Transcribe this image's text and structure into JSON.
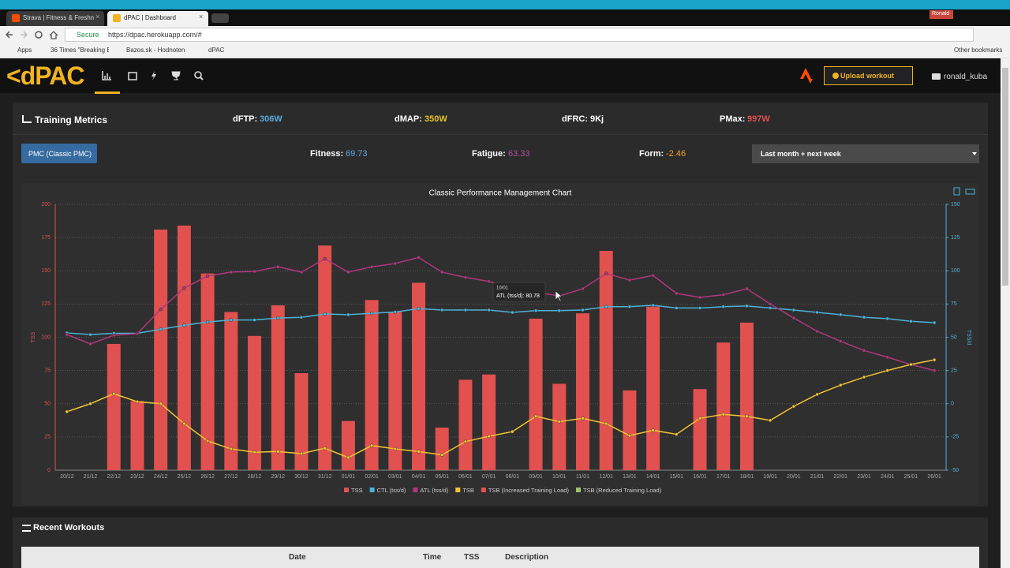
{
  "browser": {
    "tabs": [
      "Strava | Fitness & Freshn",
      "dPAC | Dashboard"
    ],
    "user": "Ronald",
    "secure": "Secure",
    "url": "https://dpac.herokuapp.com/#",
    "bookmarks": [
      "Apps",
      "36 Times \"Breaking B",
      "Bazos.sk - Hodnoten",
      "dPAC"
    ],
    "other_bookmarks": "Other bookmarks"
  },
  "nav": {
    "logo": "<dPAC",
    "upload": "Upload workout",
    "user": "ronald_kuba"
  },
  "metrics": {
    "title": "Training Metrics",
    "items": [
      {
        "label": "dFTP:",
        "value": "306W",
        "color": "#5aa8e0"
      },
      {
        "label": "dMAP:",
        "value": "350W",
        "color": "#e6c229"
      },
      {
        "label": "dFRC:",
        "value": "9Kj",
        "color": "#ffffff"
      },
      {
        "label": "PMax:",
        "value": "997W",
        "color": "#e0514f"
      }
    ]
  },
  "pmc": {
    "selector": "PMC (Classic PMC)",
    "items": [
      {
        "label": "Fitness:",
        "value": "69.73",
        "color": "#5aa8e0"
      },
      {
        "label": "Fatigue:",
        "value": "63.33",
        "color": "#b04f9b"
      },
      {
        "label": "Form:",
        "value": "-2.46",
        "color": "#f0a030"
      }
    ],
    "range": "Last month + next week"
  },
  "chart_data": {
    "type": "bar",
    "title": "Classic Performance Management Chart",
    "y_label": "TSS",
    "y2_label": "TSS/d",
    "categories": [
      "20/12",
      "21/12",
      "22/12",
      "23/12",
      "24/12",
      "25/12",
      "26/12",
      "27/12",
      "28/12",
      "29/12",
      "30/12",
      "31/12",
      "01/01",
      "02/01",
      "03/01",
      "04/01",
      "05/01",
      "06/01",
      "07/01",
      "08/01",
      "09/01",
      "10/01",
      "11/01",
      "12/01",
      "13/01",
      "14/01",
      "15/01",
      "16/01",
      "17/01",
      "18/01",
      "19/01",
      "20/01",
      "21/01",
      "22/01",
      "23/01",
      "24/01",
      "25/01",
      "26/01"
    ],
    "ylim": [
      0,
      200
    ],
    "yticks": [
      0,
      25,
      50,
      75,
      100,
      125,
      150,
      175,
      200
    ],
    "y2lim": [
      -50,
      150
    ],
    "y2ticks": [
      -50,
      -25,
      0,
      25,
      50,
      75,
      100,
      125,
      150
    ],
    "grid": true,
    "legend": "bottom",
    "series": [
      {
        "name": "TSS",
        "type": "bar",
        "color": "#e0514f",
        "values": [
          0,
          0,
          95,
          52,
          181,
          184,
          148,
          119,
          101,
          124,
          73,
          169,
          37,
          128,
          119,
          141,
          32,
          68,
          72,
          0,
          114,
          65,
          118,
          165,
          60,
          123,
          0,
          61,
          96,
          111,
          0,
          0,
          0,
          0,
          0,
          0,
          0,
          0
        ]
      },
      {
        "name": "CTL (tss/d)",
        "type": "line",
        "axis": "y2",
        "color": "#4bb3d8",
        "values": [
          53.3,
          52,
          53,
          53,
          56,
          59,
          61.5,
          63,
          63,
          64.5,
          65,
          67.5,
          67,
          68,
          69,
          71.5,
          70.5,
          70.5,
          70.5,
          68.7,
          70,
          70,
          70.5,
          73,
          73,
          74,
          72,
          72,
          73,
          73.5,
          72,
          70.5,
          68.7,
          67,
          65,
          64,
          62,
          61
        ]
      },
      {
        "name": "ATL (tss/d)",
        "type": "line",
        "axis": "y2",
        "color": "#b0377a",
        "values": [
          52,
          45,
          51.5,
          52.7,
          71,
          87,
          96,
          99,
          99.5,
          103,
          99,
          109,
          99,
          103,
          105.5,
          110,
          99,
          95,
          92,
          86.5,
          84,
          81,
          86.5,
          98,
          93,
          96.5,
          83,
          80,
          82,
          86.5,
          75,
          64.5,
          54.5,
          47,
          40,
          35,
          29.5,
          25
        ]
      },
      {
        "name": "TSB",
        "type": "line",
        "axis": "y2",
        "color": "#f2c433",
        "values": [
          -6,
          0,
          7.5,
          1.5,
          0,
          -15,
          -28,
          -34,
          -36.5,
          -36,
          -37.5,
          -33.5,
          -40.5,
          -31.5,
          -34,
          -36,
          -38.5,
          -28.5,
          -24.5,
          -21,
          -9.5,
          -13.5,
          -11,
          -15,
          -24,
          -20,
          -23,
          -11,
          -8,
          -9.5,
          -12.5,
          -2,
          7,
          14,
          20,
          25,
          29.5,
          33
        ]
      },
      {
        "name": "TSB (Increased Training Load)",
        "type": "bar",
        "axis": "y2",
        "color": "#e0514f",
        "values": [
          null,
          null,
          null,
          null,
          null,
          null,
          null,
          null,
          null,
          null,
          null,
          null,
          null,
          null,
          null,
          null,
          null,
          null,
          null,
          null,
          null,
          null,
          null,
          null,
          null,
          null,
          null,
          null,
          null,
          null,
          null,
          null,
          null,
          null,
          null,
          null,
          null,
          null
        ]
      },
      {
        "name": "TSB (Reduced Training Load)",
        "type": "bar",
        "axis": "y2",
        "color": "#9cc26a",
        "values": [
          null,
          null,
          null,
          null,
          null,
          null,
          null,
          null,
          null,
          null,
          null,
          null,
          null,
          null,
          null,
          null,
          null,
          null,
          null,
          null,
          null,
          null,
          null,
          null,
          null,
          null,
          null,
          null,
          null,
          null,
          null,
          null,
          null,
          null,
          null,
          null,
          null,
          null
        ]
      }
    ],
    "tooltip": {
      "title": "10/01",
      "text": "ATL (tss/d): 80.78"
    }
  },
  "recent": {
    "title": "Recent Workouts",
    "columns": [
      "Date",
      "Time",
      "TSS",
      "Description"
    ]
  }
}
